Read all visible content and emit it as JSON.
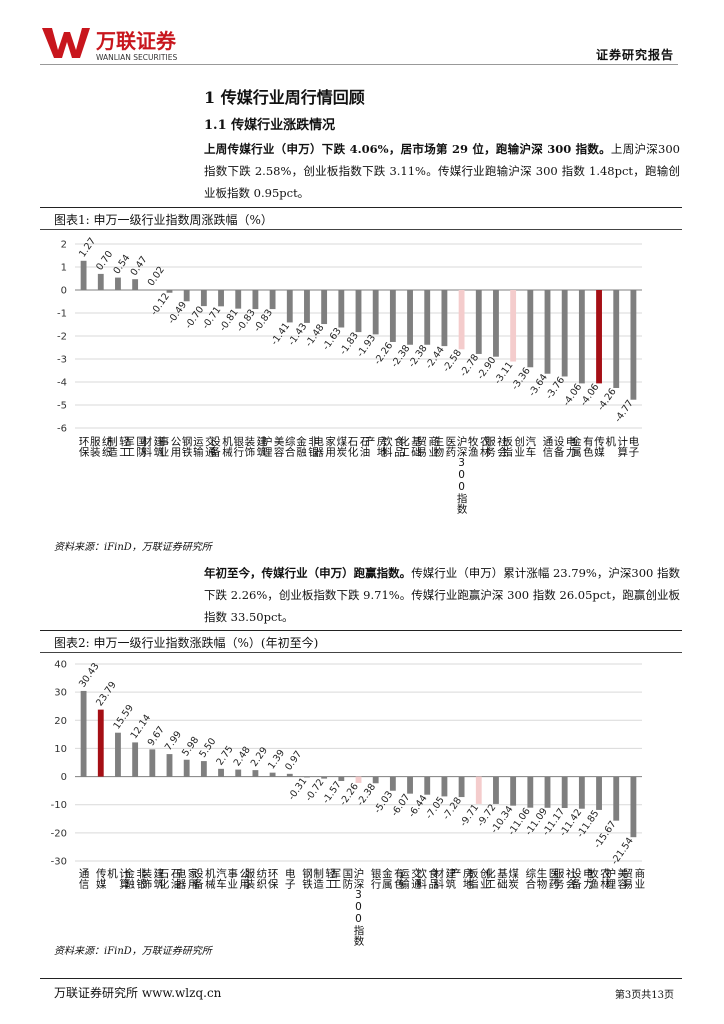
{
  "header": {
    "brand_cn": "万联证券",
    "brand_en": "WANLIAN SECURITIES",
    "report_label": "证券研究报告"
  },
  "section": {
    "title": "1   传媒行业周行情回顾",
    "subtitle": "1.1  传媒行业涨跌情况"
  },
  "para1": {
    "bold": "上周传媒行业（申万）下跌 4.06%，居市场第 29 位，跑输沪深 300 指数。",
    "rest": "上周沪深300 指数下跌 2.58%，创业板指数下跌 3.11%。传媒行业跑输沪深 300 指数 1.48pct，跑输创业板指数 0.95pct。"
  },
  "para2": {
    "bold": "年初至今，传媒行业（申万）跑赢指数。",
    "rest": "传媒行业（申万）累计涨幅 23.79%，沪深300 指数下跌 2.26%，创业板指数下跌 9.71%。传媒行业跑赢沪深 300 指数 26.05pct，跑赢创业板指数 33.50pct。"
  },
  "fig1": {
    "caption": "图表1:  申万一级行业指数周涨跌幅（%）",
    "source": "资料来源：iFinD，万联证券研究所"
  },
  "fig2": {
    "caption": "图表2:  申万一级行业指数涨跌幅（%）(年初至今)",
    "source": "资料来源：iFinD，万联证券研究所"
  },
  "colors": {
    "gray": "#7f7f7f",
    "highlight": "#a50f15",
    "benchmark": "#f4cccc",
    "grid": "#d9d9d9"
  },
  "chart_data": [
    {
      "type": "bar",
      "title": "申万一级行业指数周涨跌幅（%）",
      "ylim": [
        -6,
        2
      ],
      "yticks": [
        2,
        1,
        0,
        -1,
        -2,
        -3,
        -4,
        -5,
        -6
      ],
      "categories": [
        "环保",
        "纺织服装",
        "轻工制造",
        "国防军工",
        "建筑材料",
        "公用事业",
        "钢铁",
        "交通运输",
        "机械设备",
        "银行",
        "建筑装饰",
        "美容护理",
        "综合",
        "非银金融",
        "家用电器",
        "煤炭",
        "石油石化",
        "房地产",
        "食品饮料",
        "基础化工",
        "商业贸易",
        "医药生物",
        "沪深300指数",
        "农林牧渔",
        "社会服务",
        "创业板指",
        "汽车",
        "通信",
        "电力设备",
        "有色金属",
        "传媒",
        "计算机",
        "电子"
      ],
      "values": [
        1.27,
        0.7,
        0.54,
        0.47,
        0.02,
        -0.12,
        -0.49,
        -0.7,
        -0.71,
        -0.81,
        -0.83,
        -0.83,
        -1.41,
        -1.43,
        -1.48,
        -1.63,
        -1.83,
        -1.93,
        -2.26,
        -2.38,
        -2.38,
        -2.44,
        -2.58,
        -2.78,
        -2.9,
        -3.11,
        -3.36,
        -3.64,
        -3.76,
        -4.06,
        -4.06,
        -4.26,
        -4.77
      ],
      "labels": [
        "1.27",
        "0.70",
        "0.54",
        "0.47",
        "0.02",
        "-0.12",
        "-0.49",
        "-0.70",
        "-0.71",
        "-0.81",
        "-0.83",
        "-0.83",
        "-1.41",
        "-1.43",
        "-1.48",
        "-1.63",
        "-1.83",
        "-1.93",
        "-2.26",
        "-2.38",
        "-2.38",
        "-2.44",
        "-2.58",
        "-2.78",
        "-2.90",
        "-3.11",
        "-3.36",
        "-3.64",
        "-3.76",
        "-4.06",
        "-4.06",
        "-4.26",
        "-4.77"
      ],
      "highlight": [
        30
      ],
      "benchmark": [
        22,
        25
      ]
    },
    {
      "type": "bar",
      "title": "申万一级行业指数涨跌幅（%）(年初至今)",
      "ylim": [
        -30,
        40
      ],
      "yticks": [
        40,
        30,
        20,
        10,
        0,
        -10,
        -20,
        -30
      ],
      "categories": [
        "通信",
        "传媒",
        "计算机",
        "非银金融",
        "建筑装饰",
        "石油石化",
        "家用电器",
        "机械设备",
        "汽车",
        "公用事业",
        "纺织服装",
        "环保",
        "电子",
        "钢铁",
        "轻工制造",
        "国防军工",
        "沪深300指数",
        "银行",
        "有色金属",
        "交通运输",
        "食品饮料",
        "建筑材料",
        "房地产",
        "创业板指",
        "基础化工",
        "煤炭",
        "综合",
        "医药生物",
        "社会服务",
        "电力设备",
        "农林牧渔",
        "美容护理",
        "商业贸易"
      ],
      "values": [
        30.43,
        23.79,
        15.59,
        12.14,
        9.67,
        7.99,
        5.98,
        5.5,
        2.75,
        2.48,
        2.29,
        1.39,
        0.97,
        -0.31,
        -0.72,
        -1.57,
        -2.26,
        -2.38,
        -5.03,
        -6.07,
        -6.44,
        -7.05,
        -7.28,
        -9.71,
        -9.72,
        -10.34,
        -11.06,
        -11.09,
        -11.17,
        -11.42,
        -11.85,
        -15.67,
        -21.54
      ],
      "labels": [
        "30.43",
        "23.79",
        "15.59",
        "12.14",
        "9.67",
        "7.99",
        "5.98",
        "5.50",
        "2.75",
        "2.48",
        "2.29",
        "1.39",
        "0.97",
        "-0.31",
        "-0.72",
        "-1.57",
        "-2.26",
        "-2.38",
        "-5.03",
        "-6.07",
        "-6.44",
        "-7.05",
        "-7.28",
        "-9.71",
        "-9.72",
        "-10.34",
        "-11.06",
        "-11.09",
        "-11.17",
        "-11.42",
        "-11.85",
        "-15.67",
        "-21.54"
      ],
      "highlight": [
        1
      ],
      "benchmark": [
        16,
        23
      ]
    }
  ],
  "footer": {
    "left": "万联证券研究所 www.wlzq.cn",
    "right": "第3页共13页"
  }
}
